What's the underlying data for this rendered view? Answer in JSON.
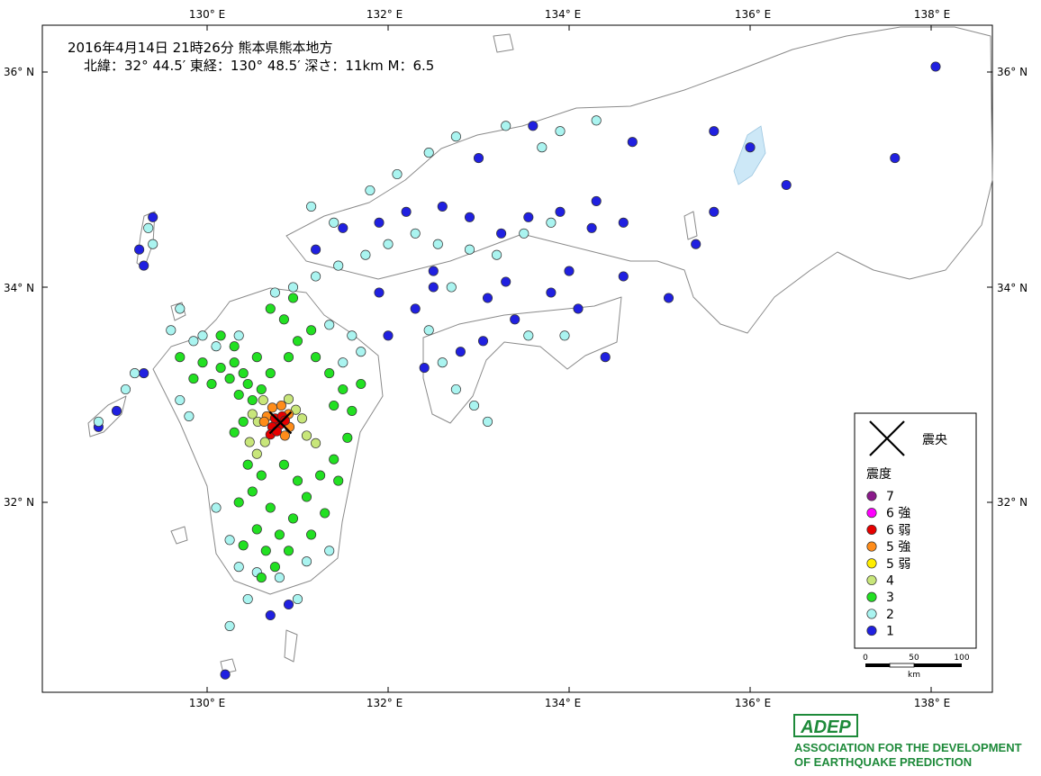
{
  "header": {
    "line1": "2016年4月14日 21時26分  熊本県熊本地方",
    "line2": "北緯：32° 44.5′ 東経：130° 48.5′ 深さ：11km  M：6.5"
  },
  "axes": {
    "lon_ticks": [
      "130° E",
      "132° E",
      "134° E",
      "136° E",
      "138° E"
    ],
    "lat_ticks": [
      "36° N",
      "34° N",
      "32° N"
    ]
  },
  "legend": {
    "epicenter_label": "震央",
    "intensity_title": "震度",
    "items": [
      {
        "label": "7",
        "color": "#8b1a8b"
      },
      {
        "label": "6 強",
        "color": "#ff00ff"
      },
      {
        "label": "6 弱",
        "color": "#e60000"
      },
      {
        "label": "5 強",
        "color": "#ff8c1a"
      },
      {
        "label": "5 弱",
        "color": "#ffee00"
      },
      {
        "label": "4",
        "color": "#c8e67a"
      },
      {
        "label": "3",
        "color": "#22e022"
      },
      {
        "label": "2",
        "color": "#aaf4f0"
      },
      {
        "label": "1",
        "color": "#2020e0"
      }
    ],
    "scale_ticks": [
      "0",
      "50",
      "100"
    ],
    "scale_unit": "km"
  },
  "logo": {
    "mark": "ADEP",
    "line1": "ASSOCIATION FOR THE DEVELOPMENT",
    "line2": "OF EARTHQUAKE PREDICTION"
  },
  "map_data": {
    "epicenter": {
      "lon": 130.81,
      "lat": 32.74
    },
    "stations": [
      [
        130.8,
        32.72,
        6
      ],
      [
        130.75,
        32.78,
        6
      ],
      [
        130.72,
        32.7,
        6
      ],
      [
        130.83,
        32.8,
        6
      ],
      [
        130.7,
        32.63,
        6
      ],
      [
        130.77,
        32.66,
        6
      ],
      [
        130.86,
        32.76,
        6
      ],
      [
        130.66,
        32.8,
        5
      ],
      [
        130.9,
        32.82,
        5
      ],
      [
        130.82,
        32.9,
        5
      ],
      [
        130.63,
        32.75,
        5
      ],
      [
        130.91,
        32.7,
        5
      ],
      [
        130.86,
        32.62,
        5
      ],
      [
        130.72,
        32.88,
        5
      ],
      [
        130.56,
        32.75,
        4
      ],
      [
        130.5,
        32.82,
        4
      ],
      [
        130.98,
        32.86,
        4
      ],
      [
        131.05,
        32.78,
        4
      ],
      [
        130.64,
        32.56,
        4
      ],
      [
        130.47,
        32.56,
        4
      ],
      [
        130.62,
        32.95,
        4
      ],
      [
        131.2,
        32.55,
        4
      ],
      [
        130.55,
        32.45,
        4
      ],
      [
        130.9,
        32.96,
        4
      ],
      [
        131.1,
        32.62,
        4
      ],
      [
        130.4,
        33.2,
        3
      ],
      [
        130.3,
        33.3,
        3
      ],
      [
        130.55,
        33.35,
        3
      ],
      [
        130.45,
        33.1,
        3
      ],
      [
        130.7,
        33.2,
        3
      ],
      [
        130.6,
        33.05,
        3
      ],
      [
        130.35,
        33.0,
        3
      ],
      [
        130.25,
        33.15,
        3
      ],
      [
        130.15,
        33.25,
        3
      ],
      [
        130.05,
        33.1,
        3
      ],
      [
        129.95,
        33.3,
        3
      ],
      [
        130.5,
        32.95,
        3
      ],
      [
        130.4,
        32.75,
        3
      ],
      [
        130.3,
        32.65,
        3
      ],
      [
        130.45,
        32.35,
        3
      ],
      [
        130.6,
        32.25,
        3
      ],
      [
        130.5,
        32.1,
        3
      ],
      [
        130.35,
        32.0,
        3
      ],
      [
        130.7,
        31.95,
        3
      ],
      [
        130.55,
        31.75,
        3
      ],
      [
        130.4,
        31.6,
        3
      ],
      [
        130.65,
        31.55,
        3
      ],
      [
        130.8,
        31.7,
        3
      ],
      [
        130.95,
        31.85,
        3
      ],
      [
        131.1,
        32.05,
        3
      ],
      [
        131.25,
        32.25,
        3
      ],
      [
        131.4,
        32.4,
        3
      ],
      [
        131.55,
        32.6,
        3
      ],
      [
        131.6,
        32.85,
        3
      ],
      [
        131.5,
        33.05,
        3
      ],
      [
        131.35,
        33.2,
        3
      ],
      [
        131.2,
        33.35,
        3
      ],
      [
        131.0,
        33.5,
        3
      ],
      [
        130.85,
        33.7,
        3
      ],
      [
        130.7,
        33.8,
        3
      ],
      [
        130.95,
        33.9,
        3
      ],
      [
        131.15,
        33.6,
        3
      ],
      [
        130.3,
        33.45,
        3
      ],
      [
        130.15,
        33.55,
        3
      ],
      [
        129.7,
        33.35,
        3
      ],
      [
        129.85,
        33.15,
        3
      ],
      [
        130.9,
        33.35,
        3
      ],
      [
        131.7,
        33.1,
        3
      ],
      [
        131.4,
        32.9,
        3
      ],
      [
        131.45,
        32.2,
        3
      ],
      [
        131.3,
        31.9,
        3
      ],
      [
        131.15,
        31.7,
        3
      ],
      [
        130.9,
        31.55,
        3
      ],
      [
        130.75,
        31.4,
        3
      ],
      [
        130.6,
        31.3,
        3
      ],
      [
        130.85,
        32.35,
        3
      ],
      [
        131.0,
        32.2,
        3
      ],
      [
        130.35,
        33.55,
        2
      ],
      [
        130.1,
        33.45,
        2
      ],
      [
        129.85,
        33.5,
        2
      ],
      [
        129.7,
        33.8,
        2
      ],
      [
        129.6,
        33.6,
        2
      ],
      [
        129.95,
        33.55,
        2
      ],
      [
        130.75,
        33.95,
        2
      ],
      [
        130.95,
        34.0,
        2
      ],
      [
        131.2,
        34.1,
        2
      ],
      [
        131.45,
        34.2,
        2
      ],
      [
        131.75,
        34.3,
        2
      ],
      [
        132.0,
        34.4,
        2
      ],
      [
        132.3,
        34.5,
        2
      ],
      [
        132.55,
        34.4,
        2
      ],
      [
        132.9,
        34.35,
        2
      ],
      [
        133.2,
        34.3,
        2
      ],
      [
        133.5,
        34.5,
        2
      ],
      [
        133.8,
        34.6,
        2
      ],
      [
        131.35,
        33.65,
        2
      ],
      [
        131.6,
        33.55,
        2
      ],
      [
        131.7,
        33.4,
        2
      ],
      [
        131.5,
        33.3,
        2
      ],
      [
        132.45,
        33.6,
        2
      ],
      [
        132.6,
        33.3,
        2
      ],
      [
        132.75,
        33.05,
        2
      ],
      [
        132.95,
        32.9,
        2
      ],
      [
        133.1,
        32.75,
        2
      ],
      [
        133.55,
        33.55,
        2
      ],
      [
        133.95,
        33.55,
        2
      ],
      [
        130.1,
        31.95,
        2
      ],
      [
        130.25,
        31.65,
        2
      ],
      [
        130.35,
        31.4,
        2
      ],
      [
        130.55,
        31.35,
        2
      ],
      [
        130.8,
        31.3,
        2
      ],
      [
        131.1,
        31.45,
        2
      ],
      [
        131.35,
        31.55,
        2
      ],
      [
        129.8,
        32.8,
        2
      ],
      [
        129.7,
        32.95,
        2
      ],
      [
        128.8,
        32.75,
        2
      ],
      [
        129.1,
        33.05,
        2
      ],
      [
        129.2,
        33.2,
        2
      ],
      [
        131.4,
        34.6,
        2
      ],
      [
        131.8,
        34.9,
        2
      ],
      [
        132.1,
        35.05,
        2
      ],
      [
        132.45,
        35.25,
        2
      ],
      [
        132.75,
        35.4,
        2
      ],
      [
        133.3,
        35.5,
        2
      ],
      [
        133.9,
        35.45,
        2
      ],
      [
        134.3,
        35.55,
        2
      ],
      [
        133.7,
        35.3,
        2
      ],
      [
        131.15,
        34.75,
        2
      ],
      [
        129.4,
        34.4,
        2
      ],
      [
        129.35,
        34.55,
        2
      ],
      [
        130.45,
        31.1,
        2
      ],
      [
        130.25,
        30.85,
        2
      ],
      [
        131.0,
        31.1,
        2
      ],
      [
        132.7,
        34.0,
        2
      ],
      [
        129.3,
        34.2,
        1
      ],
      [
        129.25,
        34.35,
        1
      ],
      [
        129.4,
        34.65,
        1
      ],
      [
        129.0,
        32.85,
        1
      ],
      [
        128.8,
        32.7,
        1
      ],
      [
        129.3,
        33.2,
        1
      ],
      [
        131.2,
        34.35,
        1
      ],
      [
        131.5,
        34.55,
        1
      ],
      [
        131.9,
        34.6,
        1
      ],
      [
        132.2,
        34.7,
        1
      ],
      [
        132.6,
        34.75,
        1
      ],
      [
        132.9,
        34.65,
        1
      ],
      [
        133.25,
        34.5,
        1
      ],
      [
        133.55,
        34.65,
        1
      ],
      [
        133.9,
        34.7,
        1
      ],
      [
        134.25,
        34.55,
        1
      ],
      [
        134.6,
        34.6,
        1
      ],
      [
        134.3,
        34.8,
        1
      ],
      [
        134.7,
        35.35,
        1
      ],
      [
        135.6,
        35.45,
        1
      ],
      [
        136.0,
        35.3,
        1
      ],
      [
        136.4,
        34.95,
        1
      ],
      [
        137.6,
        35.2,
        1
      ],
      [
        138.05,
        36.05,
        1
      ],
      [
        135.6,
        34.7,
        1
      ],
      [
        135.4,
        34.4,
        1
      ],
      [
        135.1,
        33.9,
        1
      ],
      [
        134.4,
        33.35,
        1
      ],
      [
        134.1,
        33.8,
        1
      ],
      [
        133.8,
        33.95,
        1
      ],
      [
        133.4,
        33.7,
        1
      ],
      [
        133.05,
        33.5,
        1
      ],
      [
        132.8,
        33.4,
        1
      ],
      [
        132.4,
        33.25,
        1
      ],
      [
        133.1,
        33.9,
        1
      ],
      [
        132.5,
        34.0,
        1
      ],
      [
        131.9,
        33.95,
        1
      ],
      [
        132.0,
        33.55,
        1
      ],
      [
        132.3,
        33.8,
        1
      ],
      [
        130.2,
        30.4,
        1
      ],
      [
        130.9,
        31.05,
        1
      ],
      [
        130.7,
        30.95,
        1
      ],
      [
        133.0,
        35.2,
        1
      ],
      [
        133.6,
        35.5,
        1
      ],
      [
        134.0,
        34.15,
        1
      ],
      [
        134.6,
        34.1,
        1
      ],
      [
        132.5,
        34.15,
        1
      ],
      [
        133.3,
        34.05,
        1
      ]
    ]
  }
}
